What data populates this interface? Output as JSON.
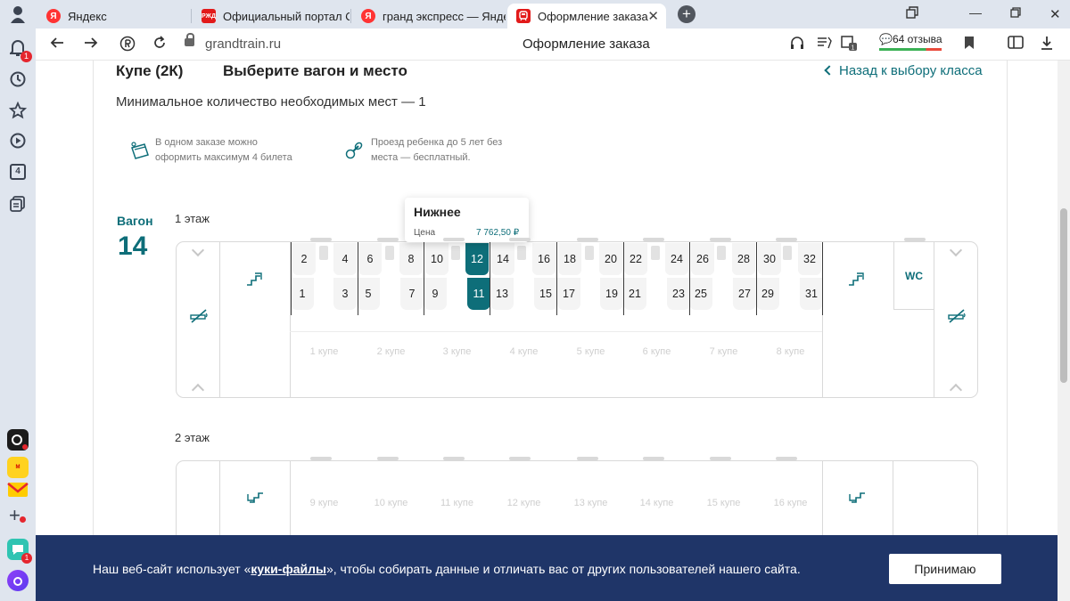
{
  "browser": {
    "tabs": [
      {
        "label": "Яндекс",
        "favicon": "Я",
        "color": "#ff3333"
      },
      {
        "label": "Официальный портал ОА",
        "favicon": "РЖД",
        "color": "#e21a1a"
      },
      {
        "label": "гранд экспресс — Яндекс",
        "favicon": "Я",
        "color": "#ff3333"
      },
      {
        "label": "Оформление заказа",
        "favicon": "train",
        "color": "#e21a1a",
        "active": true
      }
    ],
    "url_host": "grandtrain.ru",
    "page_title": "Оформление заказа",
    "reviews": "64 отзыва",
    "sidebar_badges": {
      "notifications": "1",
      "tabs_count": "4",
      "bottom": "1"
    }
  },
  "page": {
    "class_title": "Купе (2К)",
    "choose_title": "Выберите вагон и место",
    "back_link": "Назад к выбору класса",
    "min_seats": "Минимальное количество необходимых мест — 1",
    "info_tickets_line1": "В одном заказе можно",
    "info_tickets_line2": "оформить максимум 4 билета",
    "info_child_line1": "Проезд ребенка до 5 лет без",
    "info_child_line2": "места — бесплатный.",
    "wagon_label": "Вагон",
    "wagon_number": "14",
    "floor1": "1 этаж",
    "floor2": "2 этаж",
    "wc": "WC",
    "seats_top": [
      "2",
      "4",
      "6",
      "8",
      "10",
      "12",
      "14",
      "16",
      "18",
      "20",
      "22",
      "24",
      "26",
      "28",
      "30",
      "32"
    ],
    "seats_bottom": [
      "1",
      "3",
      "5",
      "7",
      "9",
      "11",
      "13",
      "15",
      "17",
      "19",
      "21",
      "23",
      "25",
      "27",
      "29",
      "31"
    ],
    "selected_seat": "11",
    "coupes_floor1": [
      "1 купе",
      "2 купе",
      "3 купе",
      "4 купе",
      "5 купе",
      "6 купе",
      "7 купе",
      "8 купе"
    ],
    "coupes_floor2": [
      "9 купе",
      "10 купе",
      "11 купе",
      "12 купе",
      "13 купе",
      "14 купе",
      "15 купе",
      "16 купе"
    ],
    "tooltip": {
      "title": "Нижнее",
      "price_label": "Цена",
      "price": "7 762,50 ₽"
    }
  },
  "cookie": {
    "text_before": "Наш веб-сайт использует «",
    "link": "куки-файлы",
    "text_after": "», чтобы собирать данные и отличать вас от других пользователей нашего сайта.",
    "accept": "Принимаю"
  },
  "colors": {
    "accent": "#0e6e79",
    "banner": "#1f3568",
    "chrome": "#dfe5ee"
  }
}
